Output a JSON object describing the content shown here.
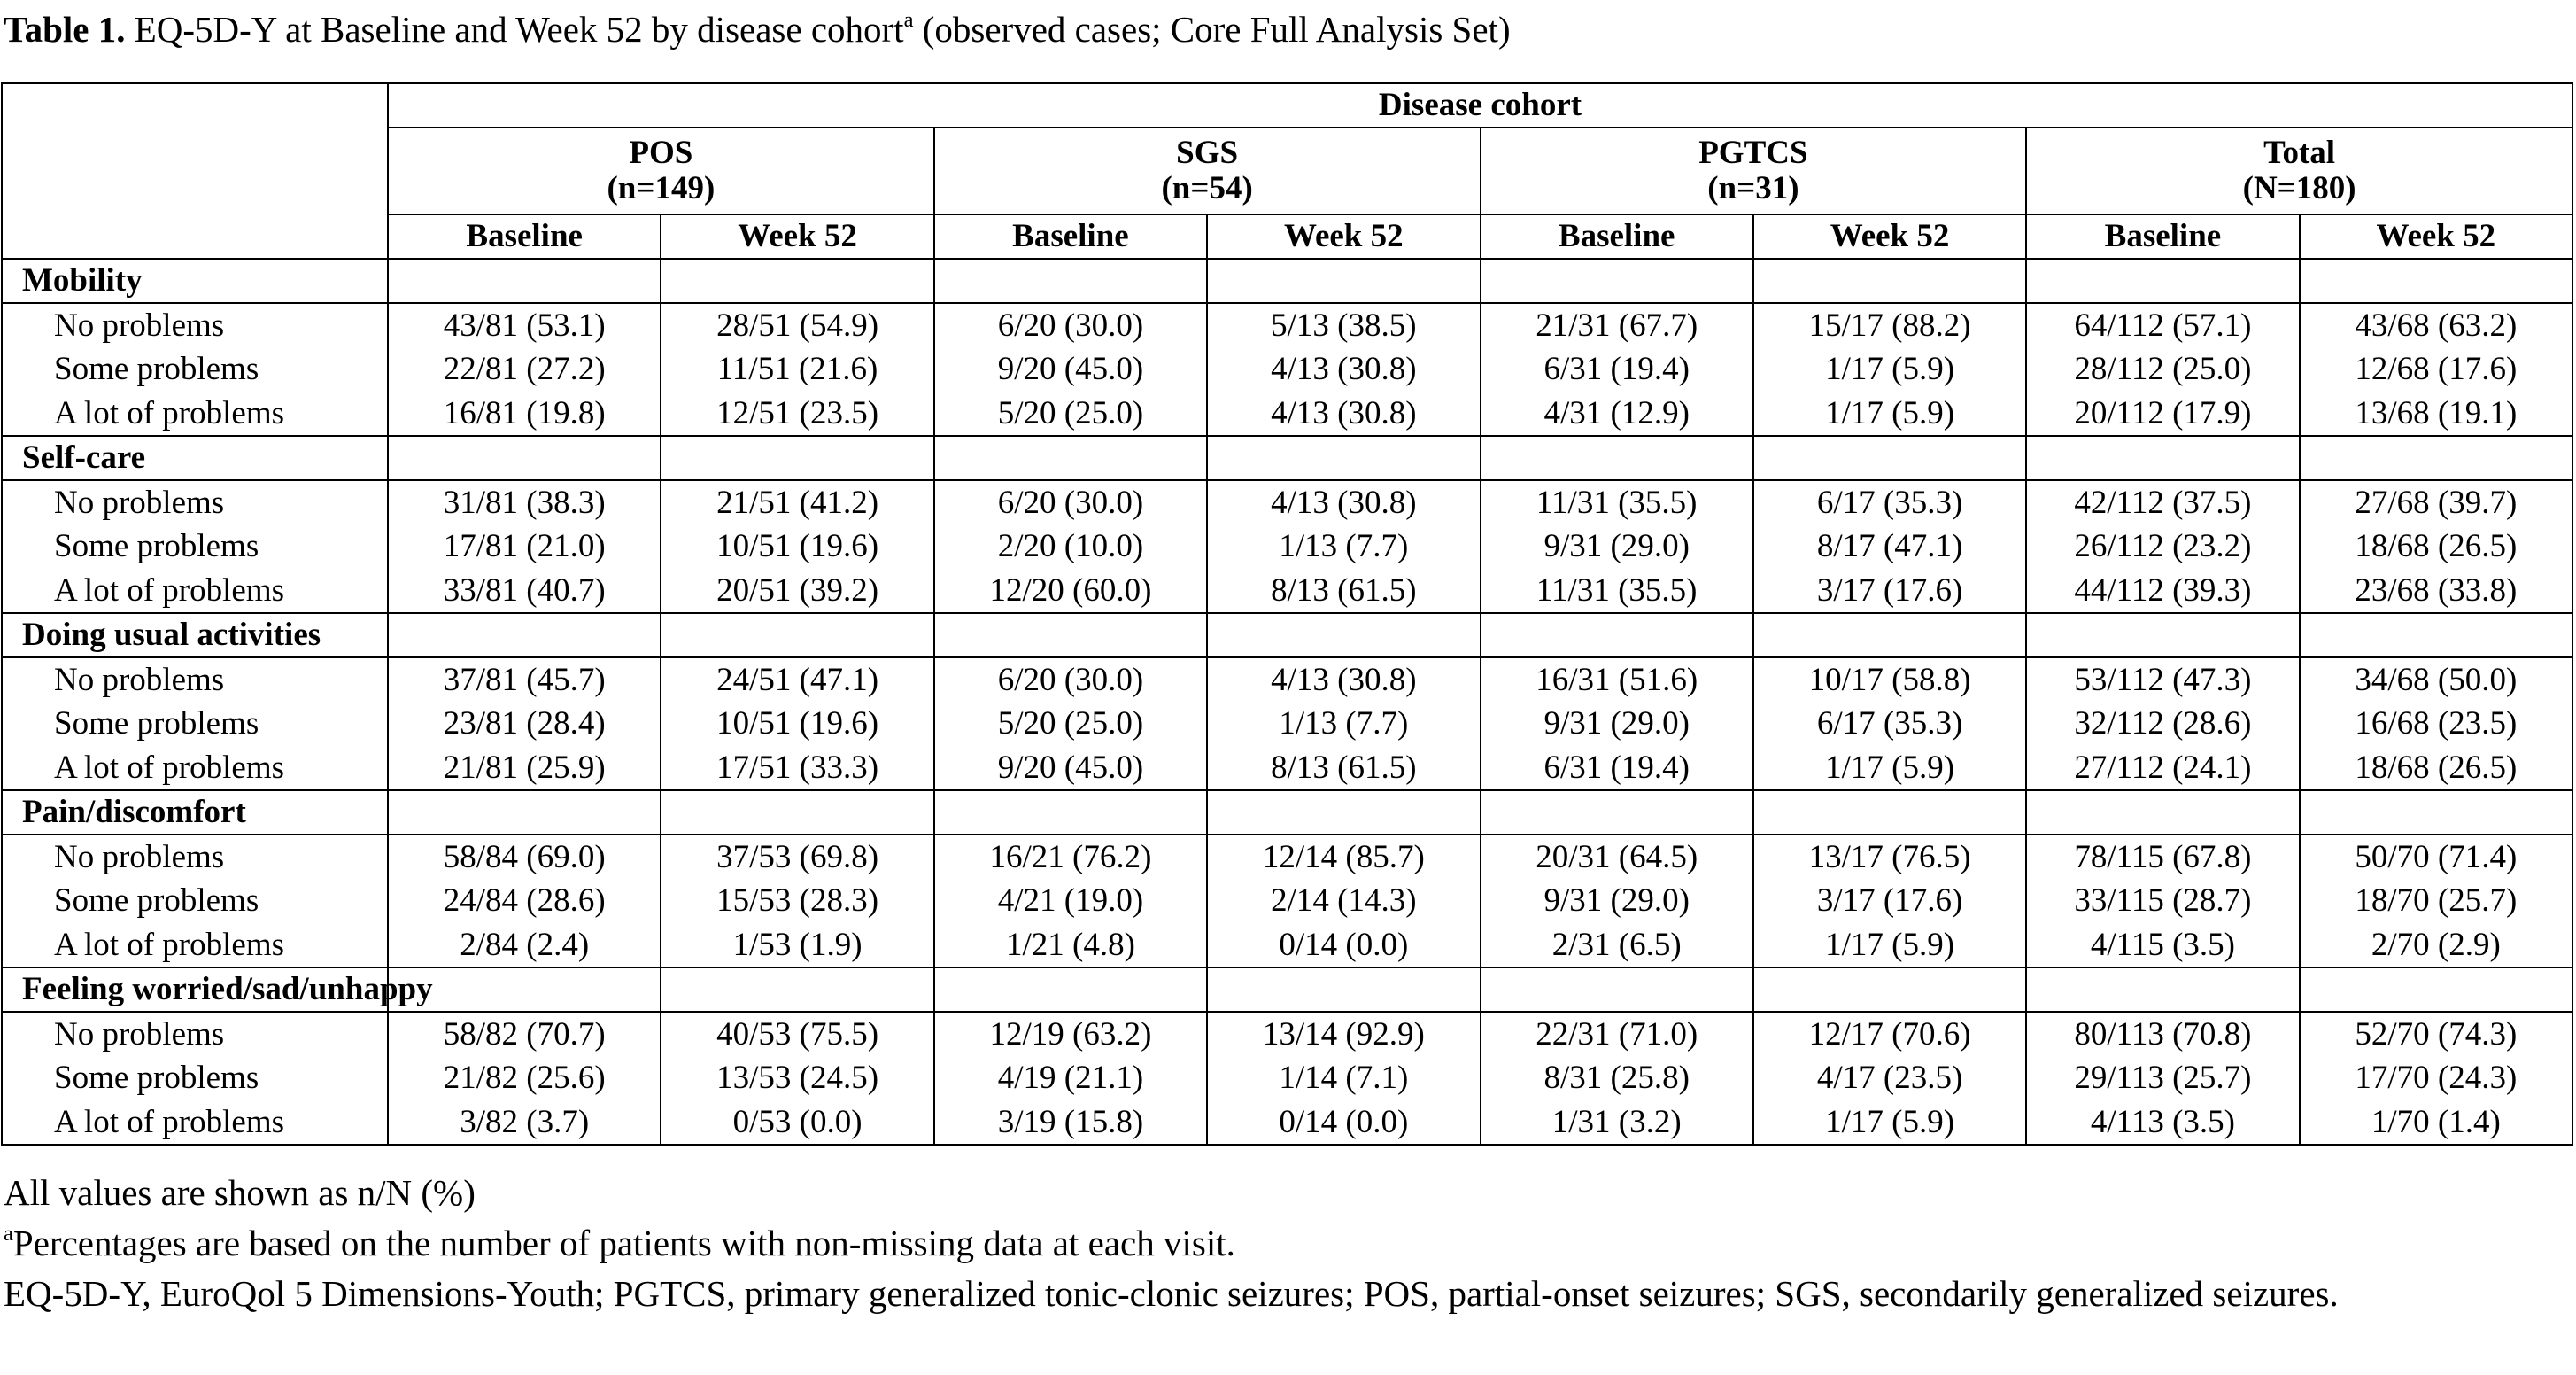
{
  "caption": {
    "label": "Table 1.",
    "text": "EQ-5D-Y at Baseline and Week 52 by disease cohort",
    "superscript": "a",
    "text_after": "(observed cases; Core Full Analysis Set)"
  },
  "table": {
    "group_header": "Disease cohort",
    "cohorts": [
      {
        "name": "POS",
        "n": "(n=149)"
      },
      {
        "name": "SGS",
        "n": "(n=54)"
      },
      {
        "name": "PGTCS",
        "n": "(n=31)"
      },
      {
        "name": "Total",
        "n": "(N=180)"
      }
    ],
    "visits": [
      "Baseline",
      "Week 52"
    ],
    "sections": [
      {
        "title": "Mobility",
        "rows": [
          {
            "label": "No problems",
            "cells": [
              "43/81 (53.1)",
              "28/51 (54.9)",
              "6/20 (30.0)",
              "5/13 (38.5)",
              "21/31 (67.7)",
              "15/17 (88.2)",
              "64/112 (57.1)",
              "43/68 (63.2)"
            ]
          },
          {
            "label": "Some problems",
            "cells": [
              "22/81 (27.2)",
              "11/51 (21.6)",
              "9/20 (45.0)",
              "4/13 (30.8)",
              "6/31 (19.4)",
              "1/17 (5.9)",
              "28/112 (25.0)",
              "12/68 (17.6)"
            ]
          },
          {
            "label": "A lot of problems",
            "cells": [
              "16/81 (19.8)",
              "12/51 (23.5)",
              "5/20 (25.0)",
              "4/13 (30.8)",
              "4/31 (12.9)",
              "1/17 (5.9)",
              "20/112 (17.9)",
              "13/68 (19.1)"
            ]
          }
        ]
      },
      {
        "title": "Self-care",
        "rows": [
          {
            "label": "No problems",
            "cells": [
              "31/81 (38.3)",
              "21/51 (41.2)",
              "6/20 (30.0)",
              "4/13 (30.8)",
              "11/31 (35.5)",
              "6/17 (35.3)",
              "42/112 (37.5)",
              "27/68 (39.7)"
            ]
          },
          {
            "label": "Some problems",
            "cells": [
              "17/81 (21.0)",
              "10/51 (19.6)",
              "2/20 (10.0)",
              "1/13 (7.7)",
              "9/31 (29.0)",
              "8/17 (47.1)",
              "26/112 (23.2)",
              "18/68 (26.5)"
            ]
          },
          {
            "label": "A lot of problems",
            "cells": [
              "33/81 (40.7)",
              "20/51 (39.2)",
              "12/20 (60.0)",
              "8/13 (61.5)",
              "11/31 (35.5)",
              "3/17 (17.6)",
              "44/112 (39.3)",
              "23/68 (33.8)"
            ]
          }
        ]
      },
      {
        "title": "Doing usual activities",
        "rows": [
          {
            "label": "No problems",
            "cells": [
              "37/81 (45.7)",
              "24/51 (47.1)",
              "6/20 (30.0)",
              "4/13 (30.8)",
              "16/31 (51.6)",
              "10/17 (58.8)",
              "53/112 (47.3)",
              "34/68 (50.0)"
            ]
          },
          {
            "label": "Some problems",
            "cells": [
              "23/81 (28.4)",
              "10/51 (19.6)",
              "5/20 (25.0)",
              "1/13 (7.7)",
              "9/31 (29.0)",
              "6/17 (35.3)",
              "32/112 (28.6)",
              "16/68 (23.5)"
            ]
          },
          {
            "label": "A lot of problems",
            "cells": [
              "21/81 (25.9)",
              "17/51 (33.3)",
              "9/20 (45.0)",
              "8/13 (61.5)",
              "6/31 (19.4)",
              "1/17 (5.9)",
              "27/112 (24.1)",
              "18/68 (26.5)"
            ]
          }
        ]
      },
      {
        "title": "Pain/discomfort",
        "rows": [
          {
            "label": "No problems",
            "cells": [
              "58/84 (69.0)",
              "37/53 (69.8)",
              "16/21 (76.2)",
              "12/14 (85.7)",
              "20/31 (64.5)",
              "13/17 (76.5)",
              "78/115 (67.8)",
              "50/70 (71.4)"
            ]
          },
          {
            "label": "Some problems",
            "cells": [
              "24/84 (28.6)",
              "15/53 (28.3)",
              "4/21 (19.0)",
              "2/14 (14.3)",
              "9/31 (29.0)",
              "3/17 (17.6)",
              "33/115 (28.7)",
              "18/70 (25.7)"
            ]
          },
          {
            "label": "A lot of problems",
            "cells": [
              "2/84 (2.4)",
              "1/53 (1.9)",
              "1/21 (4.8)",
              "0/14 (0.0)",
              "2/31 (6.5)",
              "1/17 (5.9)",
              "4/115 (3.5)",
              "2/70 (2.9)"
            ]
          }
        ]
      },
      {
        "title": "Feeling worried/sad/unhappy",
        "rows": [
          {
            "label": "No problems",
            "cells": [
              "58/82 (70.7)",
              "40/53 (75.5)",
              "12/19 (63.2)",
              "13/14 (92.9)",
              "22/31 (71.0)",
              "12/17 (70.6)",
              "80/113 (70.8)",
              "52/70 (74.3)"
            ]
          },
          {
            "label": "Some problems",
            "cells": [
              "21/82 (25.6)",
              "13/53 (24.5)",
              "4/19 (21.1)",
              "1/14 (7.1)",
              "8/31 (25.8)",
              "4/17 (23.5)",
              "29/113 (25.7)",
              "17/70 (24.3)"
            ]
          },
          {
            "label": "A lot of problems",
            "cells": [
              "3/82 (3.7)",
              "0/53 (0.0)",
              "3/19 (15.8)",
              "0/14 (0.0)",
              "1/31 (3.2)",
              "1/17 (5.9)",
              "4/113 (3.5)",
              "1/70 (1.4)"
            ]
          }
        ]
      }
    ]
  },
  "footnotes": [
    {
      "text": "All values are shown as n/N (%)"
    },
    {
      "marker": "a",
      "text": "Percentages are based on the number of patients with non-missing data at each visit."
    },
    {
      "text": "EQ-5D-Y, EuroQol 5 Dimensions-Youth; PGTCS, primary generalized tonic-clonic seizures; POS, partial-onset seizures; SGS, secondarily generalized seizures."
    }
  ]
}
